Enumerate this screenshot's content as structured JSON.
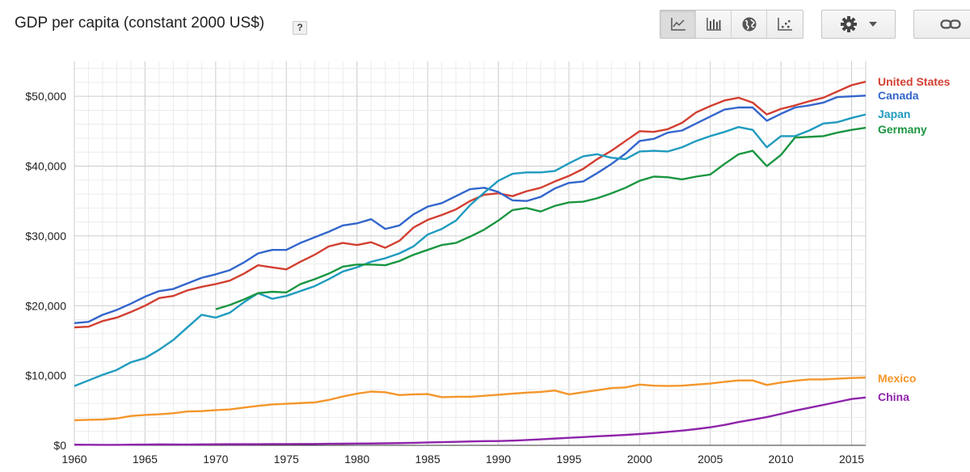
{
  "header": {
    "title": "GDP per capita (constant 2000 US$)",
    "help_label": "?"
  },
  "toolbar": {
    "chart_type_buttons": [
      {
        "name": "line-chart-icon",
        "active": true
      },
      {
        "name": "bar-chart-icon",
        "active": false
      },
      {
        "name": "globe-icon",
        "active": false
      },
      {
        "name": "scatter-chart-icon",
        "active": false
      }
    ],
    "settings_icon": "gear-icon",
    "dropdown_icon": "caret-down-icon",
    "link_icon": "link-icon"
  },
  "chart_data": {
    "type": "line",
    "title": "GDP per capita (constant 2000 US$)",
    "xlabel": "",
    "ylabel": "",
    "xlim": [
      1960,
      2016
    ],
    "ylim": [
      0,
      55000
    ],
    "x_ticks": [
      1960,
      1965,
      1970,
      1975,
      1980,
      1985,
      1990,
      1995,
      2000,
      2005,
      2010,
      2015
    ],
    "y_ticks": [
      0,
      10000,
      20000,
      30000,
      40000,
      50000
    ],
    "y_tick_labels": [
      "$0",
      "$10,000",
      "$20,000",
      "$30,000",
      "$40,000",
      "$50,000"
    ],
    "grid": true,
    "legend_placement": "right",
    "series": [
      {
        "name": "United States",
        "color": "#d23f31",
        "start_year": 1960,
        "values": [
          16900,
          17000,
          17800,
          18300,
          19100,
          20000,
          21100,
          21400,
          22200,
          22700,
          23100,
          23600,
          24600,
          25800,
          25500,
          25200,
          26300,
          27300,
          28500,
          29000,
          28700,
          29100,
          28300,
          29300,
          31200,
          32300,
          33000,
          33800,
          35000,
          35900,
          36100,
          35700,
          36400,
          36900,
          37800,
          38600,
          39600,
          41000,
          42200,
          43600,
          45000,
          44900,
          45300,
          46200,
          47700,
          48600,
          49400,
          49800,
          49100,
          47400,
          48200,
          48700,
          49300,
          49800,
          50700,
          51600,
          52100
        ]
      },
      {
        "name": "Canada",
        "color": "#3366cc",
        "start_year": 1960,
        "values": [
          17500,
          17700,
          18700,
          19400,
          20300,
          21300,
          22100,
          22400,
          23200,
          24000,
          24500,
          25100,
          26200,
          27500,
          28000,
          28000,
          29000,
          29800,
          30600,
          31500,
          31800,
          32400,
          31000,
          31500,
          33100,
          34200,
          34700,
          35700,
          36700,
          36900,
          36300,
          35100,
          35000,
          35600,
          36800,
          37600,
          37800,
          39000,
          40300,
          41800,
          43600,
          43900,
          44800,
          45100,
          46100,
          47100,
          48100,
          48400,
          48400,
          46500,
          47500,
          48400,
          48700,
          49100,
          49900,
          50000,
          50100
        ]
      },
      {
        "name": "Japan",
        "color": "#1f9bbf",
        "start_year": 1960,
        "values": [
          8500,
          9300,
          10100,
          10800,
          11900,
          12500,
          13700,
          15100,
          16900,
          18700,
          18300,
          19000,
          20500,
          21800,
          21000,
          21400,
          22100,
          22800,
          23800,
          24900,
          25500,
          26300,
          26800,
          27500,
          28500,
          30200,
          31000,
          32200,
          34400,
          36200,
          37900,
          38900,
          39100,
          39100,
          39300,
          40400,
          41400,
          41700,
          41200,
          41000,
          42100,
          42200,
          42100,
          42700,
          43600,
          44300,
          44900,
          45600,
          45200,
          42700,
          44300,
          44300,
          45100,
          46100,
          46300,
          46900,
          47400
        ]
      },
      {
        "name": "Germany",
        "color": "#1a9641",
        "start_year": 1970,
        "values": [
          19500,
          20100,
          20900,
          21800,
          22000,
          21900,
          23100,
          23800,
          24600,
          25600,
          25900,
          25900,
          25800,
          26400,
          27300,
          28000,
          28700,
          29000,
          29900,
          30900,
          32200,
          33700,
          34000,
          33500,
          34300,
          34800,
          34900,
          35400,
          36100,
          36900,
          37900,
          38500,
          38400,
          38100,
          38500,
          38800,
          40300,
          41700,
          42200,
          40000,
          41600,
          44100,
          44200,
          44300,
          44800,
          45200,
          45500
        ]
      },
      {
        "name": "Mexico",
        "color": "#f4962b",
        "start_year": 1960,
        "values": [
          3600,
          3650,
          3700,
          3850,
          4200,
          4350,
          4450,
          4600,
          4850,
          4900,
          5050,
          5150,
          5400,
          5650,
          5850,
          5950,
          6050,
          6150,
          6500,
          7000,
          7400,
          7700,
          7600,
          7200,
          7300,
          7350,
          6900,
          6950,
          6950,
          7100,
          7250,
          7400,
          7550,
          7650,
          7850,
          7300,
          7600,
          7900,
          8200,
          8300,
          8700,
          8550,
          8500,
          8550,
          8700,
          8850,
          9100,
          9300,
          9300,
          8650,
          9000,
          9250,
          9450,
          9450,
          9550,
          9650,
          9700
        ]
      },
      {
        "name": "China",
        "color": "#8e24aa",
        "start_year": 1960,
        "values": [
          100,
          80,
          60,
          70,
          90,
          110,
          130,
          120,
          110,
          130,
          150,
          160,
          160,
          170,
          180,
          180,
          190,
          200,
          220,
          230,
          250,
          260,
          290,
          320,
          360,
          410,
          450,
          500,
          560,
          600,
          620,
          670,
          760,
          860,
          970,
          1080,
          1180,
          1290,
          1390,
          1490,
          1620,
          1760,
          1930,
          2110,
          2330,
          2590,
          2920,
          3340,
          3690,
          4050,
          4500,
          4970,
          5380,
          5790,
          6210,
          6640,
          6850
        ]
      }
    ],
    "legend": [
      {
        "name": "United States",
        "color": "#d23f31"
      },
      {
        "name": "Canada",
        "color": "#3366cc"
      },
      {
        "name": "Japan",
        "color": "#1f9bbf"
      },
      {
        "name": "Germany",
        "color": "#1a9641"
      },
      {
        "name": "Mexico",
        "color": "#f4962b"
      },
      {
        "name": "China",
        "color": "#8e24aa"
      }
    ]
  }
}
